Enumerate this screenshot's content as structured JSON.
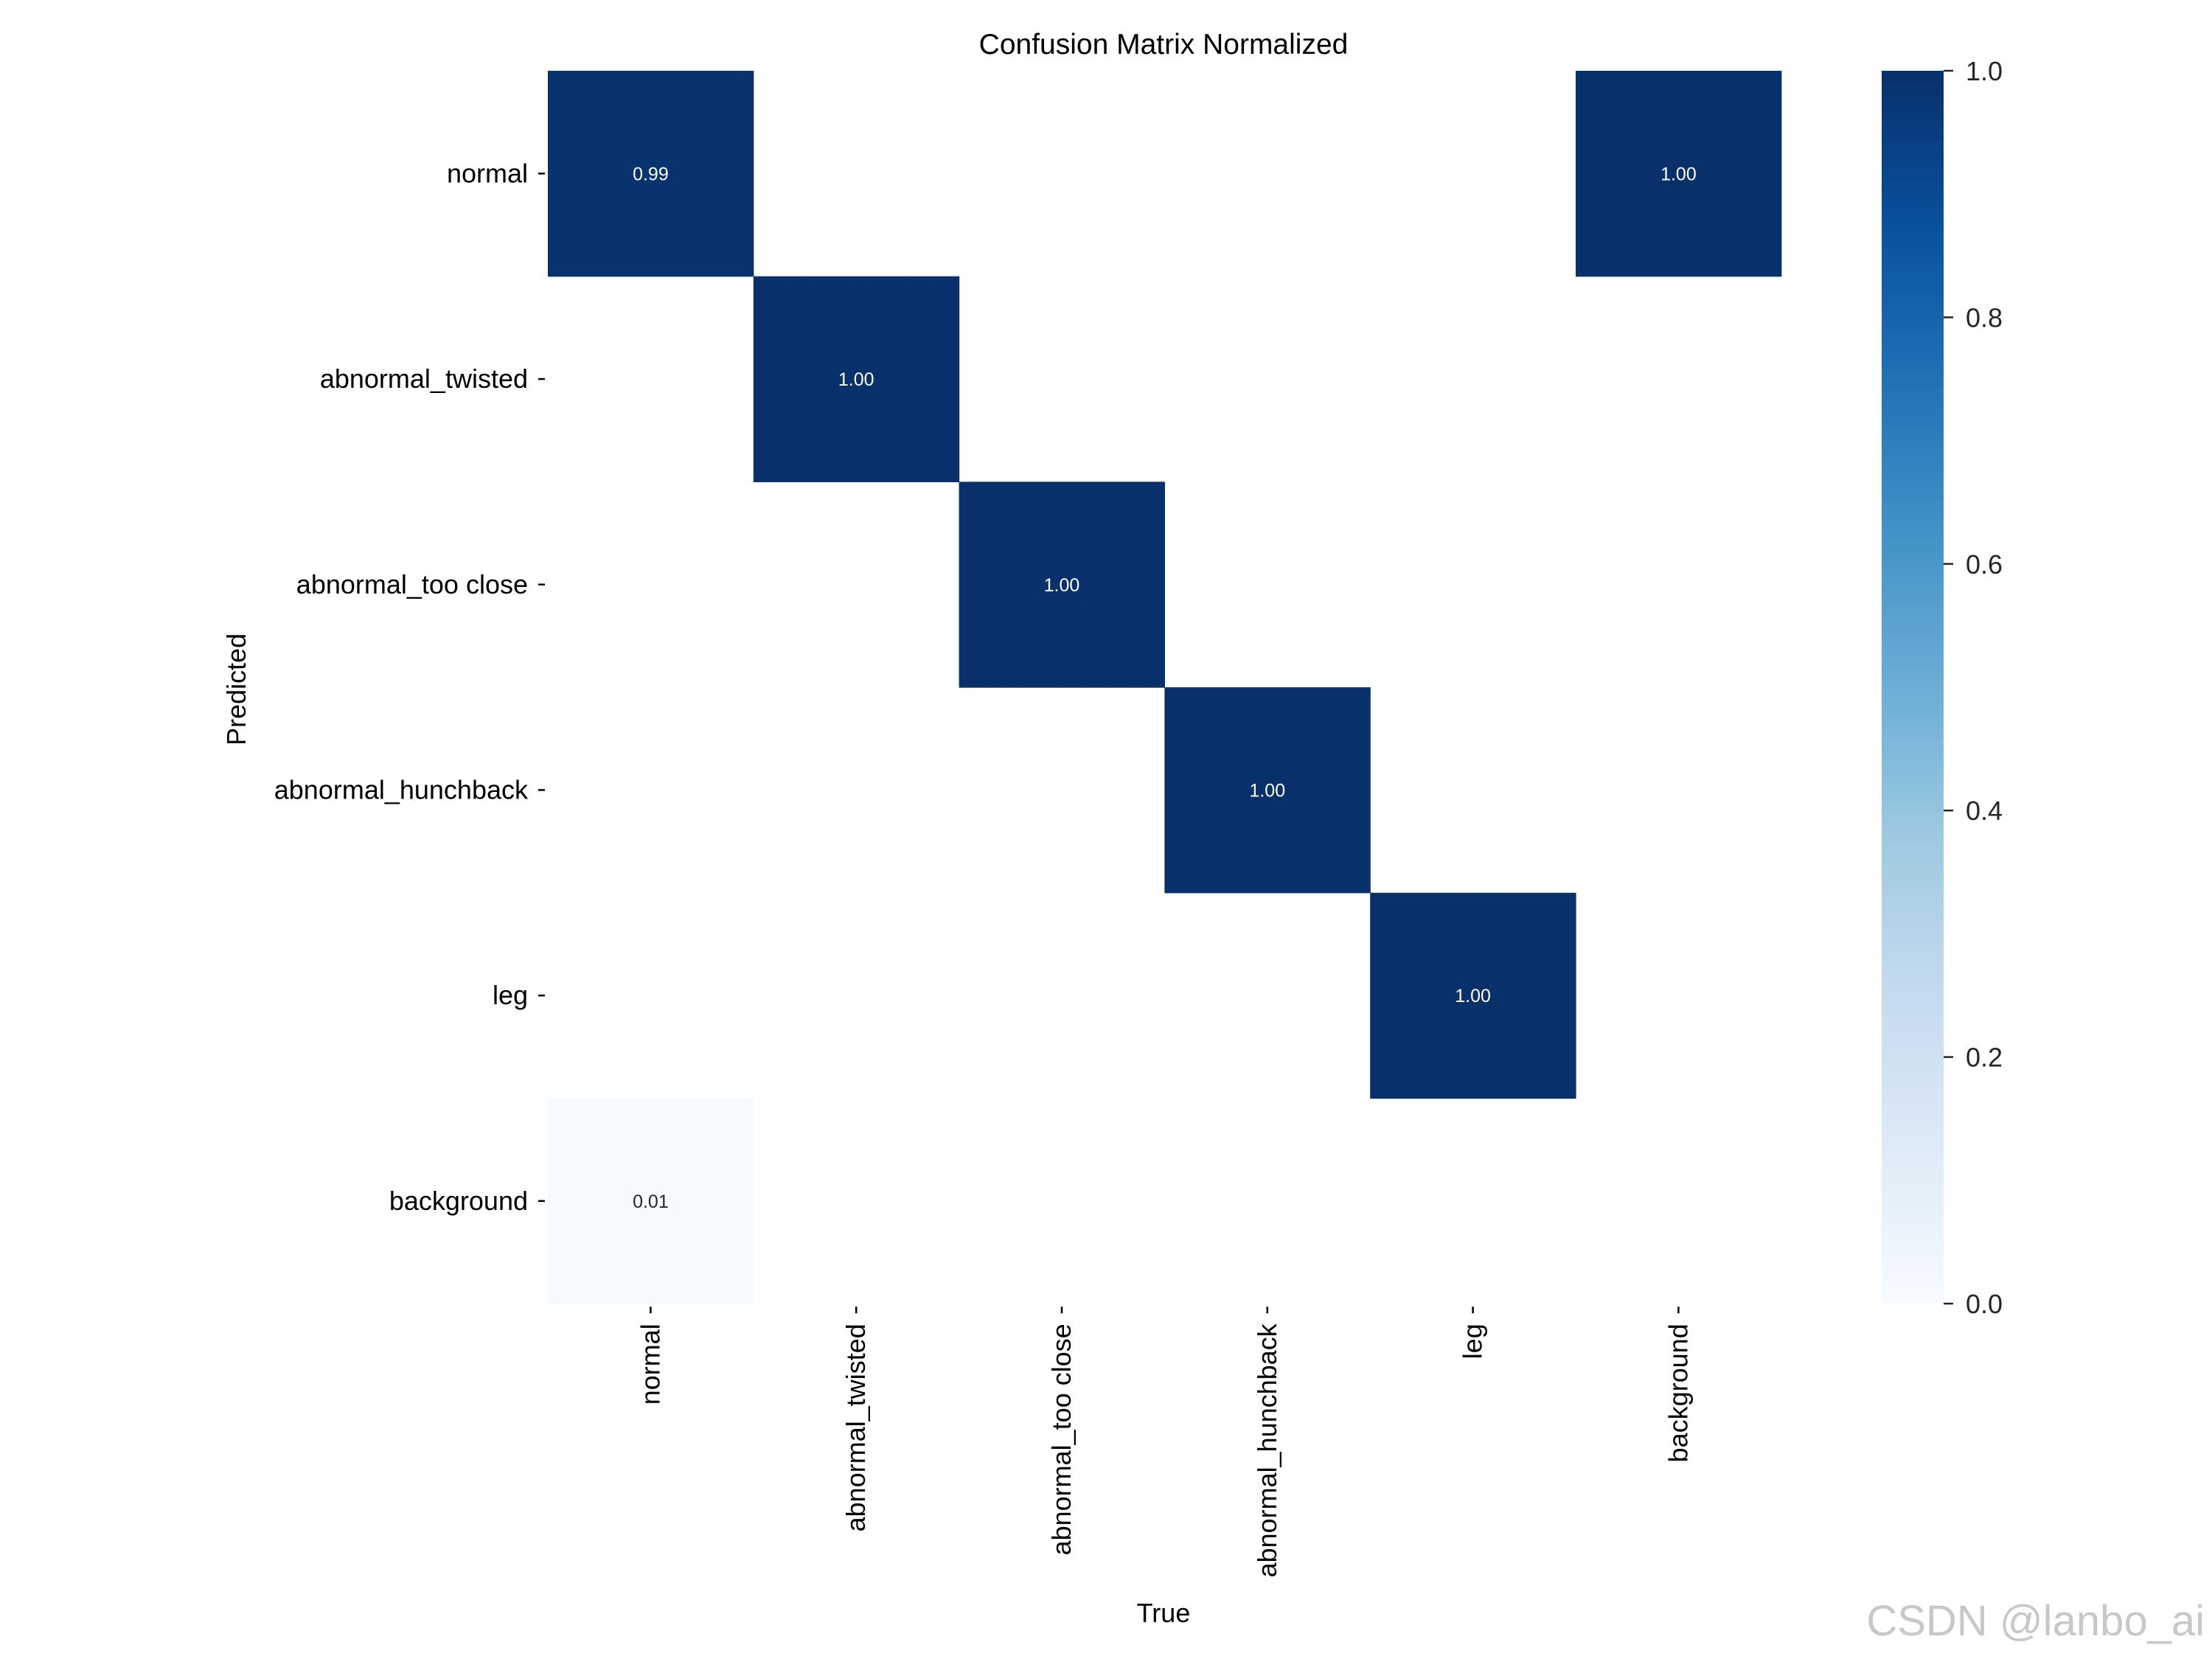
{
  "chart_data": {
    "type": "heatmap",
    "title": "Confusion Matrix Normalized",
    "xlabel": "True",
    "ylabel": "Predicted",
    "x_categories": [
      "normal",
      "abnormal_twisted",
      "abnormal_too close",
      "abnormal_hunchback",
      "leg",
      "background"
    ],
    "y_categories": [
      "normal",
      "abnormal_twisted",
      "abnormal_too close",
      "abnormal_hunchback",
      "leg",
      "background"
    ],
    "values": [
      [
        0.99,
        null,
        null,
        null,
        null,
        1.0
      ],
      [
        null,
        1.0,
        null,
        null,
        null,
        null
      ],
      [
        null,
        null,
        1.0,
        null,
        null,
        null
      ],
      [
        null,
        null,
        null,
        1.0,
        null,
        null
      ],
      [
        null,
        null,
        null,
        null,
        1.0,
        null
      ],
      [
        0.01,
        null,
        null,
        null,
        null,
        null
      ]
    ],
    "cell_labels": [
      [
        "0.99",
        "",
        "",
        "",
        "",
        "1.00"
      ],
      [
        "",
        "1.00",
        "",
        "",
        "",
        ""
      ],
      [
        "",
        "",
        "1.00",
        "",
        "",
        ""
      ],
      [
        "",
        "",
        "",
        "1.00",
        "",
        ""
      ],
      [
        "",
        "",
        "",
        "",
        "1.00",
        ""
      ],
      [
        "0.01",
        "",
        "",
        "",
        "",
        ""
      ]
    ],
    "colormap": "Blues",
    "vmin": 0.0,
    "vmax": 1.0,
    "colorbar_ticks": [
      "0.0",
      "0.2",
      "0.4",
      "0.6",
      "0.8",
      "1.0"
    ],
    "grid": false
  },
  "watermark": "CSDN @lanbo_ai"
}
